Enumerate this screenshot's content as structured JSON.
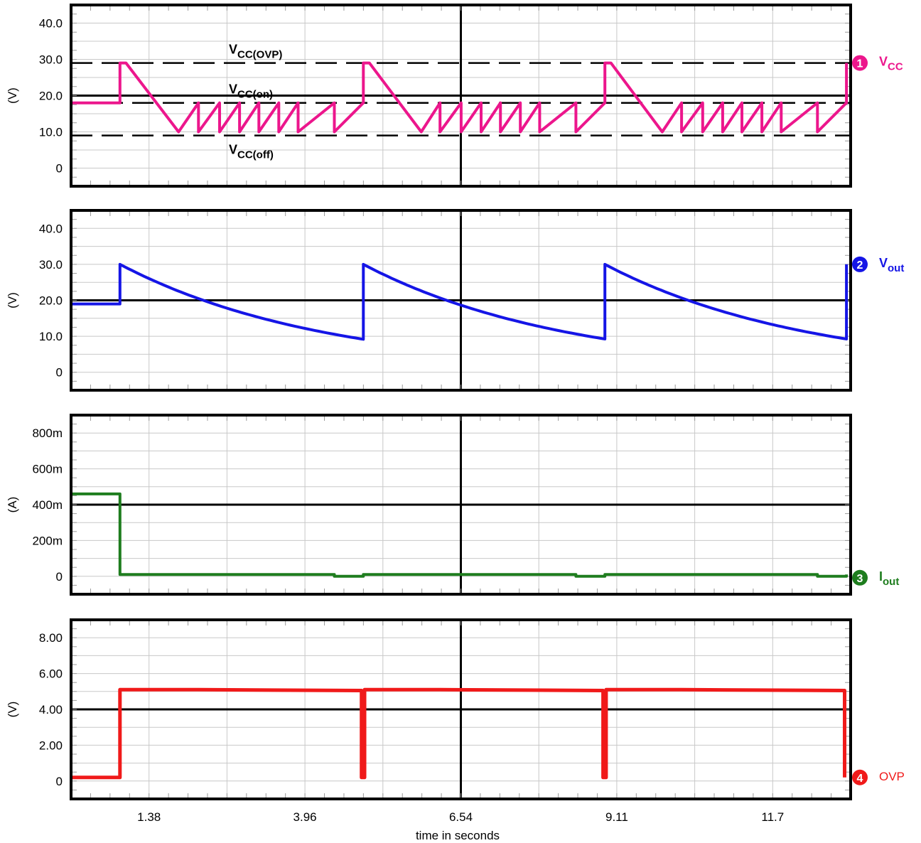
{
  "chart_data": {
    "type": "line",
    "xlabel": "time in seconds",
    "x_ticks": [
      "1.38",
      "3.96",
      "6.54",
      "9.11",
      "11.7"
    ],
    "x_tick_values": [
      1.38,
      3.96,
      6.54,
      9.11,
      11.7
    ],
    "xlim": [
      0.09,
      13.0
    ],
    "panels": [
      {
        "id": "vcc",
        "ylabel": "(V)",
        "ylim": [
          -5,
          45
        ],
        "y_ticks": [
          "0",
          "10.0",
          "20.0",
          "30.0",
          "40.0"
        ],
        "y_tick_values": [
          0,
          10,
          20,
          30,
          40
        ],
        "dark_y": 20,
        "thresholds": [
          {
            "label_main": "V",
            "label_sub": "CC(OVP)",
            "y": 29
          },
          {
            "label_main": "V",
            "label_sub": "CC(on)",
            "y": 18
          },
          {
            "label_main": "V",
            "label_sub": "CC(off)",
            "y": 9
          }
        ],
        "series": {
          "marker": "1",
          "label_main": "V",
          "label_sub": "CC",
          "color": "#ec168c",
          "x": [
            0.09,
            0.9,
            0.9,
            1.0,
            1.87,
            2.2,
            2.2,
            2.55,
            2.55,
            2.88,
            2.88,
            3.2,
            3.2,
            3.53,
            3.53,
            3.85,
            3.85,
            4.45,
            4.45,
            4.93,
            4.93,
            5.03,
            5.89,
            6.2,
            6.2,
            6.55,
            6.55,
            6.88,
            6.88,
            7.2,
            7.2,
            7.53,
            7.53,
            7.85,
            7.85,
            8.45,
            8.45,
            8.93,
            8.93,
            9.03,
            9.88,
            10.2,
            10.2,
            10.55,
            10.55,
            10.88,
            10.88,
            11.2,
            11.2,
            11.53,
            11.53,
            11.85,
            11.85,
            12.45,
            12.45,
            12.93,
            12.93
          ],
          "y": [
            18,
            18,
            29,
            29,
            10,
            18,
            10,
            18,
            10,
            18,
            10,
            18,
            10,
            18,
            10,
            18,
            10,
            18,
            10,
            18,
            29,
            29,
            10,
            18,
            10,
            18,
            10,
            18,
            10,
            18,
            10,
            18,
            10,
            18,
            10,
            18,
            10,
            18,
            29,
            29,
            10,
            18,
            10,
            18,
            10,
            18,
            10,
            18,
            10,
            18,
            10,
            18,
            10,
            18,
            10,
            18,
            29
          ]
        }
      },
      {
        "id": "vout",
        "ylabel": "(V)",
        "ylim": [
          -5,
          45
        ],
        "y_ticks": [
          "0",
          "10.0",
          "20.0",
          "30.0",
          "40.0"
        ],
        "y_tick_values": [
          0,
          10,
          20,
          30,
          40
        ],
        "dark_y": 20,
        "series": {
          "marker": "2",
          "label_main": "V",
          "label_sub": "out",
          "color": "#1515e6",
          "decay_tau": 3.4,
          "segments": [
            {
              "x0": 0.09,
              "x1": 0.9,
              "flat": 19
            },
            {
              "x0": 0.9,
              "x1": 4.93,
              "peak": 30
            },
            {
              "x0": 4.93,
              "x1": 8.93,
              "peak": 30
            },
            {
              "x0": 8.93,
              "x1": 12.93,
              "peak": 30
            }
          ]
        }
      },
      {
        "id": "iout",
        "ylabel": "(A)",
        "ylim": [
          -0.1,
          0.9
        ],
        "y_ticks": [
          "0",
          "200m",
          "400m",
          "600m",
          "800m"
        ],
        "y_tick_values": [
          0,
          0.2,
          0.4,
          0.6,
          0.8
        ],
        "dark_y": 0.4,
        "series": {
          "marker": "3",
          "label_main": "I",
          "label_sub": "out",
          "color": "#1e7d1e",
          "x": [
            0.09,
            0.9,
            0.9,
            4.45,
            4.45,
            4.93,
            4.93,
            8.45,
            8.45,
            8.93,
            8.93,
            12.45,
            12.45,
            12.93,
            12.93
          ],
          "y": [
            0.46,
            0.46,
            0.01,
            0.01,
            0.0,
            0.0,
            0.01,
            0.01,
            0.0,
            0.0,
            0.01,
            0.01,
            0.0,
            0.0,
            0.01
          ]
        }
      },
      {
        "id": "ovp",
        "ylabel": "(V)",
        "ylim": [
          -1,
          9
        ],
        "y_ticks": [
          "0",
          "2.00",
          "4.00",
          "6.00",
          "8.00"
        ],
        "y_tick_values": [
          0,
          2,
          4,
          6,
          8
        ],
        "dark_y": 4,
        "series": {
          "marker": "4",
          "label_main": "OVP",
          "label_sub": "",
          "color": "#f01a1a",
          "x": [
            0.09,
            0.9,
            0.9,
            2.2,
            4.9,
            4.9,
            4.95,
            4.95,
            6.2,
            8.9,
            8.9,
            8.95,
            8.95,
            10.2,
            12.9,
            12.9
          ],
          "y": [
            0.2,
            0.2,
            5.1,
            5.1,
            5.05,
            0.2,
            0.2,
            5.1,
            5.1,
            5.05,
            0.2,
            0.2,
            5.1,
            5.1,
            5.05,
            0.2
          ]
        }
      }
    ]
  }
}
